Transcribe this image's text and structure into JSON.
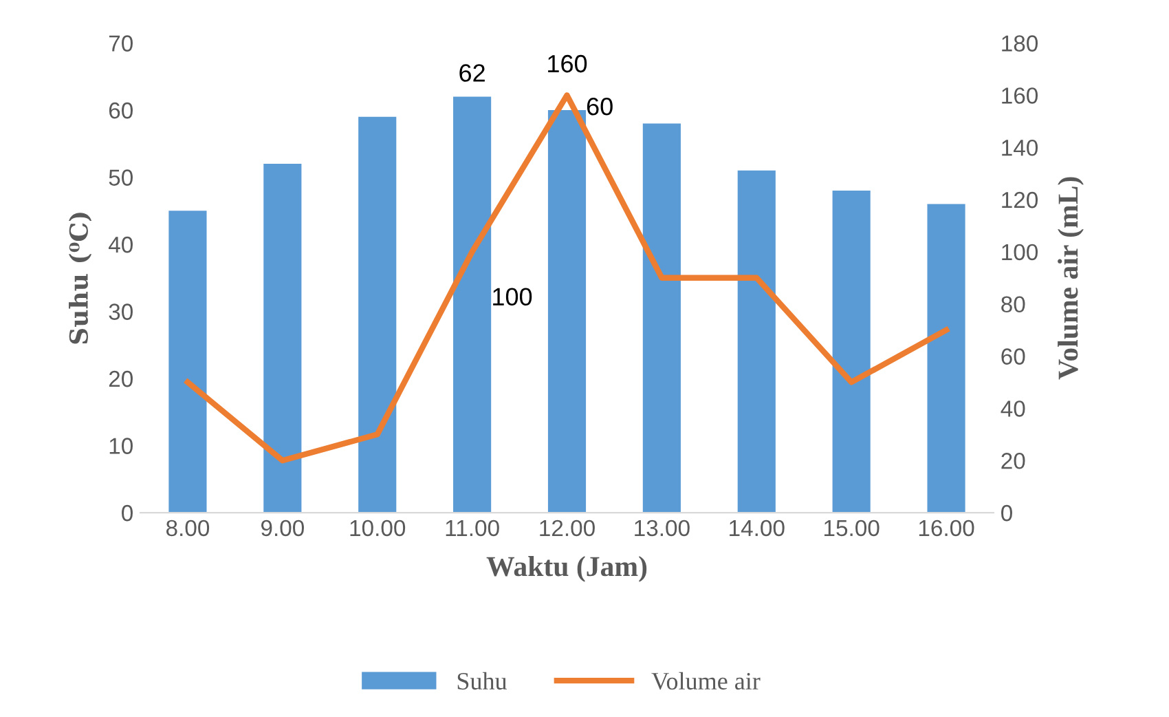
{
  "chart_data": {
    "type": "bar",
    "xlabel": "Waktu (Jam)",
    "ylabel": "Suhu (⁰C)",
    "y2label": "Volume air (mL)",
    "categories": [
      "8.00",
      "9.00",
      "10.00",
      "11.00",
      "12.00",
      "13.00",
      "14.00",
      "15.00",
      "16.00"
    ],
    "series": [
      {
        "name": "Suhu",
        "color": "#5b9bd5",
        "values": [
          45,
          52,
          59,
          62,
          60,
          58,
          51,
          48,
          46
        ],
        "value_labels": [
          null,
          null,
          null,
          "62",
          "60",
          null,
          null,
          null,
          null
        ]
      },
      {
        "name": "Volume air",
        "type": "line",
        "axis": "y2",
        "color": "#ed7d31",
        "values": [
          50,
          20,
          30,
          100,
          160,
          90,
          90,
          50,
          70
        ],
        "value_labels": [
          null,
          null,
          null,
          "100",
          "160",
          null,
          null,
          null,
          null
        ]
      }
    ],
    "ylim": [
      0,
      70
    ],
    "yticks": [
      0,
      10,
      20,
      30,
      40,
      50,
      60,
      70
    ],
    "y2lim": [
      0,
      180
    ],
    "y2ticks": [
      0,
      20,
      40,
      60,
      80,
      100,
      120,
      140,
      160,
      180
    ],
    "legend": "bottom",
    "grid": false,
    "marker": "none",
    "line_style": "solid"
  }
}
